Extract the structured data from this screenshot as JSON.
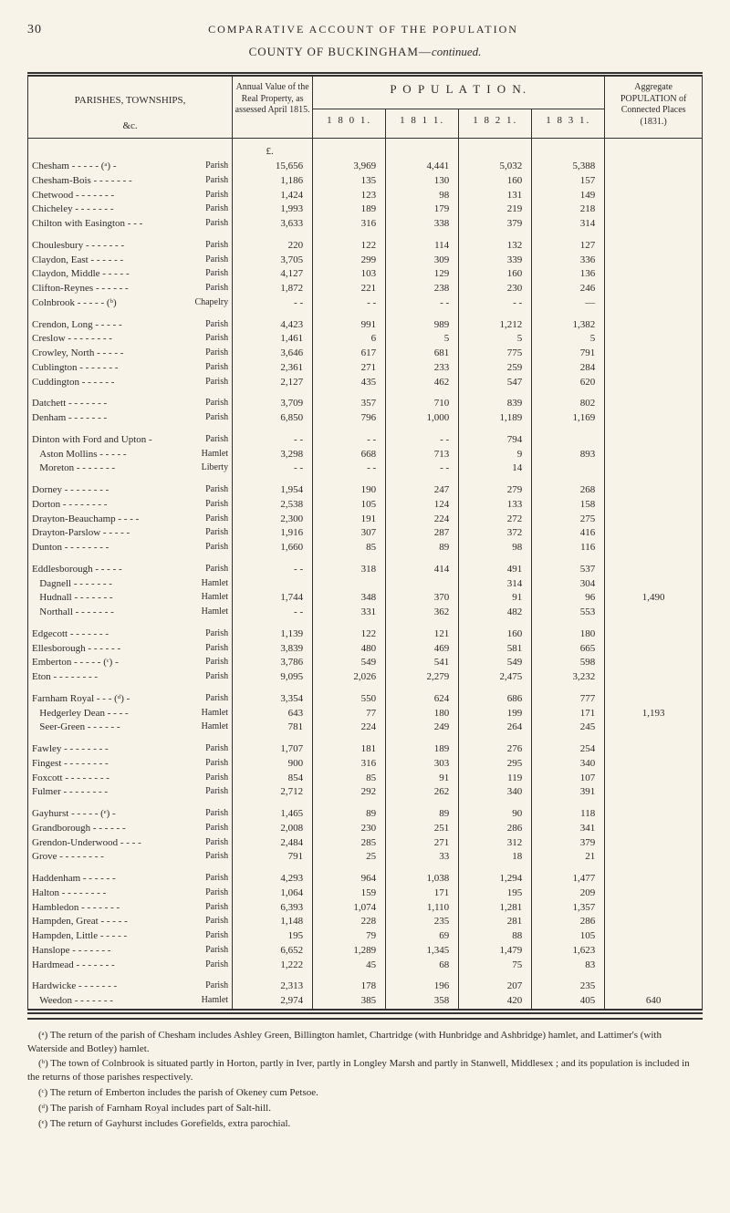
{
  "page_number": "30",
  "running_head": "COMPARATIVE ACCOUNT OF THE POPULATION",
  "county_line_prefix": "COUNTY OF BUCKINGHAM—",
  "county_line_suffix": "continued.",
  "columns": {
    "parishes": "PARISHES, TOWNSHIPS,",
    "etc": "&c.",
    "annual": "Annual Value of the Real Property, as assessed April 1815.",
    "population": "P O P U L A T I O N.",
    "y1801": "1 8 0 1.",
    "y1811": "1 8 1 1.",
    "y1821": "1 8 2 1.",
    "y1831": "1 8 3 1.",
    "aggregate": "Aggregate POPULATION of Connected Places (1831.)"
  },
  "currency_header": "£.",
  "rows": [
    {
      "name": "Chesham - - - - - (ᵃ) -",
      "kind": "Parish",
      "annual": "15,656",
      "y1": "3,969",
      "y2": "4,441",
      "y3": "5,032",
      "y4": "5,388",
      "agg": ""
    },
    {
      "name": "Chesham-Bois - - - - - - -",
      "kind": "Parish",
      "annual": "1,186",
      "y1": "135",
      "y2": "130",
      "y3": "160",
      "y4": "157",
      "agg": ""
    },
    {
      "name": "Chetwood - - - - - - -",
      "kind": "Parish",
      "annual": "1,424",
      "y1": "123",
      "y2": "98",
      "y3": "131",
      "y4": "149",
      "agg": ""
    },
    {
      "name": "Chicheley - - - - - - -",
      "kind": "Parish",
      "annual": "1,993",
      "y1": "189",
      "y2": "179",
      "y3": "219",
      "y4": "218",
      "agg": ""
    },
    {
      "name": "Chilton with Easington - - -",
      "kind": "Parish",
      "annual": "3,633",
      "y1": "316",
      "y2": "338",
      "y3": "379",
      "y4": "314",
      "agg": ""
    },
    {
      "gap": true
    },
    {
      "name": "Choulesbury - - - - - - -",
      "kind": "Parish",
      "annual": "220",
      "y1": "122",
      "y2": "114",
      "y3": "132",
      "y4": "127",
      "agg": ""
    },
    {
      "name": "Claydon, East - - - - - -",
      "kind": "Parish",
      "annual": "3,705",
      "y1": "299",
      "y2": "309",
      "y3": "339",
      "y4": "336",
      "agg": ""
    },
    {
      "name": "Claydon, Middle - - - - -",
      "kind": "Parish",
      "annual": "4,127",
      "y1": "103",
      "y2": "129",
      "y3": "160",
      "y4": "136",
      "agg": ""
    },
    {
      "name": "Clifton-Reynes - - - - - -",
      "kind": "Parish",
      "annual": "1,872",
      "y1": "221",
      "y2": "238",
      "y3": "230",
      "y4": "246",
      "agg": ""
    },
    {
      "name": "Colnbrook - - - - - (ᵇ)",
      "kind": "Chapelry",
      "annual": "-    -",
      "y1": "-    -",
      "y2": "-    -",
      "y3": "-    -",
      "y4": "—",
      "agg": ""
    },
    {
      "gap": true
    },
    {
      "name": "Crendon, Long - - - - -",
      "kind": "Parish",
      "annual": "4,423",
      "y1": "991",
      "y2": "989",
      "y3": "1,212",
      "y4": "1,382",
      "agg": ""
    },
    {
      "name": "Creslow - - - - - - - -",
      "kind": "Parish",
      "annual": "1,461",
      "y1": "6",
      "y2": "5",
      "y3": "5",
      "y4": "5",
      "agg": ""
    },
    {
      "name": "Crowley, North - - - - -",
      "kind": "Parish",
      "annual": "3,646",
      "y1": "617",
      "y2": "681",
      "y3": "775",
      "y4": "791",
      "agg": ""
    },
    {
      "name": "Cublington - - - - - - -",
      "kind": "Parish",
      "annual": "2,361",
      "y1": "271",
      "y2": "233",
      "y3": "259",
      "y4": "284",
      "agg": ""
    },
    {
      "name": "Cuddington - - - - - -",
      "kind": "Parish",
      "annual": "2,127",
      "y1": "435",
      "y2": "462",
      "y3": "547",
      "y4": "620",
      "agg": ""
    },
    {
      "gap": true
    },
    {
      "name": "Datchett - - - - - - -",
      "kind": "Parish",
      "annual": "3,709",
      "y1": "357",
      "y2": "710",
      "y3": "839",
      "y4": "802",
      "agg": ""
    },
    {
      "name": "Denham - - - - - - -",
      "kind": "Parish",
      "annual": "6,850",
      "y1": "796",
      "y2": "1,000",
      "y3": "1,189",
      "y4": "1,169",
      "agg": ""
    },
    {
      "gap": true
    },
    {
      "name": "Dinton with Ford and Upton -",
      "kind": "Parish",
      "annual": "-    -",
      "y1": "-    -",
      "y2": "-    -",
      "y3": "794",
      "y4": "",
      "agg": "",
      "brace_start": "dinton"
    },
    {
      "name": "Aston Mollins - - - - -",
      "kind": "Hamlet",
      "annual": "3,298",
      "y1": "668",
      "y2": "713",
      "y3": "9",
      "y4": "893",
      "agg": "",
      "indent": true
    },
    {
      "name": "Moreton - - - - - - -",
      "kind": "Liberty",
      "annual": "-    -",
      "y1": "-    -",
      "y2": "-    -",
      "y3": "14",
      "y4": "",
      "agg": "",
      "indent": true
    },
    {
      "gap": true
    },
    {
      "name": "Dorney - - - - - - - -",
      "kind": "Parish",
      "annual": "1,954",
      "y1": "190",
      "y2": "247",
      "y3": "279",
      "y4": "268",
      "agg": ""
    },
    {
      "name": "Dorton - - - - - - - -",
      "kind": "Parish",
      "annual": "2,538",
      "y1": "105",
      "y2": "124",
      "y3": "133",
      "y4": "158",
      "agg": ""
    },
    {
      "name": "Drayton-Beauchamp - - - -",
      "kind": "Parish",
      "annual": "2,300",
      "y1": "191",
      "y2": "224",
      "y3": "272",
      "y4": "275",
      "agg": ""
    },
    {
      "name": "Drayton-Parslow - - - - -",
      "kind": "Parish",
      "annual": "1,916",
      "y1": "307",
      "y2": "287",
      "y3": "372",
      "y4": "416",
      "agg": ""
    },
    {
      "name": "Dunton - - - - - - - -",
      "kind": "Parish",
      "annual": "1,660",
      "y1": "85",
      "y2": "89",
      "y3": "98",
      "y4": "116",
      "agg": ""
    },
    {
      "gap": true
    },
    {
      "name": "Eddlesborough - - - - -",
      "kind": "Parish",
      "annual": "-    -",
      "y1": "318",
      "y2": "414",
      "y3": "491",
      "y4": "537",
      "agg": ""
    },
    {
      "name": "Dagnell - - - - - - -",
      "kind": "Hamlet",
      "annual": "",
      "y1": "",
      "y2": "",
      "y3": "314",
      "y4": "304",
      "agg": "",
      "indent": true
    },
    {
      "name": "Hudnall - - - - - - -",
      "kind": "Hamlet",
      "annual": "1,744",
      "y1": "348",
      "y2": "370",
      "y3": "91",
      "y4": "96",
      "agg": "1,490",
      "indent": true
    },
    {
      "name": "Northall - - - - - - -",
      "kind": "Hamlet",
      "annual": "-    -",
      "y1": "331",
      "y2": "362",
      "y3": "482",
      "y4": "553",
      "agg": "",
      "indent": true
    },
    {
      "gap": true
    },
    {
      "name": "Edgecott - - - - - - -",
      "kind": "Parish",
      "annual": "1,139",
      "y1": "122",
      "y2": "121",
      "y3": "160",
      "y4": "180",
      "agg": ""
    },
    {
      "name": "Ellesborough - - - - - -",
      "kind": "Parish",
      "annual": "3,839",
      "y1": "480",
      "y2": "469",
      "y3": "581",
      "y4": "665",
      "agg": ""
    },
    {
      "name": "Emberton - - - - - (ᶜ) -",
      "kind": "Parish",
      "annual": "3,786",
      "y1": "549",
      "y2": "541",
      "y3": "549",
      "y4": "598",
      "agg": ""
    },
    {
      "name": "Eton - - - - - - - -",
      "kind": "Parish",
      "annual": "9,095",
      "y1": "2,026",
      "y2": "2,279",
      "y3": "2,475",
      "y4": "3,232",
      "agg": ""
    },
    {
      "gap": true
    },
    {
      "name": "Farnham Royal - - - (ᵈ) -",
      "kind": "Parish",
      "annual": "3,354",
      "y1": "550",
      "y2": "624",
      "y3": "686",
      "y4": "777",
      "agg": ""
    },
    {
      "name": "Hedgerley Dean - - - -",
      "kind": "Hamlet",
      "annual": "643",
      "y1": "77",
      "y2": "180",
      "y3": "199",
      "y4": "171",
      "agg": "1,193",
      "indent": true
    },
    {
      "name": "Seer-Green - - - - - -",
      "kind": "Hamlet",
      "annual": "781",
      "y1": "224",
      "y2": "249",
      "y3": "264",
      "y4": "245",
      "agg": "",
      "indent": true
    },
    {
      "gap": true
    },
    {
      "name": "Fawley - - - - - - - -",
      "kind": "Parish",
      "annual": "1,707",
      "y1": "181",
      "y2": "189",
      "y3": "276",
      "y4": "254",
      "agg": ""
    },
    {
      "name": "Fingest - - - - - - - -",
      "kind": "Parish",
      "annual": "900",
      "y1": "316",
      "y2": "303",
      "y3": "295",
      "y4": "340",
      "agg": ""
    },
    {
      "name": "Foxcott - - - - - - - -",
      "kind": "Parish",
      "annual": "854",
      "y1": "85",
      "y2": "91",
      "y3": "119",
      "y4": "107",
      "agg": ""
    },
    {
      "name": "Fulmer - - - - - - - -",
      "kind": "Parish",
      "annual": "2,712",
      "y1": "292",
      "y2": "262",
      "y3": "340",
      "y4": "391",
      "agg": ""
    },
    {
      "gap": true
    },
    {
      "name": "Gayhurst - - - - - (ᵉ) -",
      "kind": "Parish",
      "annual": "1,465",
      "y1": "89",
      "y2": "89",
      "y3": "90",
      "y4": "118",
      "agg": ""
    },
    {
      "name": "Grandborough - - - - - -",
      "kind": "Parish",
      "annual": "2,008",
      "y1": "230",
      "y2": "251",
      "y3": "286",
      "y4": "341",
      "agg": ""
    },
    {
      "name": "Grendon-Underwood - - - -",
      "kind": "Parish",
      "annual": "2,484",
      "y1": "285",
      "y2": "271",
      "y3": "312",
      "y4": "379",
      "agg": ""
    },
    {
      "name": "Grove - - - - - - - -",
      "kind": "Parish",
      "annual": "791",
      "y1": "25",
      "y2": "33",
      "y3": "18",
      "y4": "21",
      "agg": ""
    },
    {
      "gap": true
    },
    {
      "name": "Haddenham - - - - - -",
      "kind": "Parish",
      "annual": "4,293",
      "y1": "964",
      "y2": "1,038",
      "y3": "1,294",
      "y4": "1,477",
      "agg": ""
    },
    {
      "name": "Halton - - - - - - - -",
      "kind": "Parish",
      "annual": "1,064",
      "y1": "159",
      "y2": "171",
      "y3": "195",
      "y4": "209",
      "agg": ""
    },
    {
      "name": "Hambledon - - - - - - -",
      "kind": "Parish",
      "annual": "6,393",
      "y1": "1,074",
      "y2": "1,110",
      "y3": "1,281",
      "y4": "1,357",
      "agg": ""
    },
    {
      "name": "Hampden, Great - - - - -",
      "kind": "Parish",
      "annual": "1,148",
      "y1": "228",
      "y2": "235",
      "y3": "281",
      "y4": "286",
      "agg": ""
    },
    {
      "name": "Hampden, Little - - - - -",
      "kind": "Parish",
      "annual": "195",
      "y1": "79",
      "y2": "69",
      "y3": "88",
      "y4": "105",
      "agg": ""
    },
    {
      "name": "Hanslope - - - - - - -",
      "kind": "Parish",
      "annual": "6,652",
      "y1": "1,289",
      "y2": "1,345",
      "y3": "1,479",
      "y4": "1,623",
      "agg": ""
    },
    {
      "name": "Hardmead - - - - - - -",
      "kind": "Parish",
      "annual": "1,222",
      "y1": "45",
      "y2": "68",
      "y3": "75",
      "y4": "83",
      "agg": ""
    },
    {
      "gap": true
    },
    {
      "name": "Hardwicke - - - - - - -",
      "kind": "Parish",
      "annual": "2,313",
      "y1": "178",
      "y2": "196",
      "y3": "207",
      "y4": "235",
      "agg": ""
    },
    {
      "name": "Weedon - - - - - - -",
      "kind": "Hamlet",
      "annual": "2,974",
      "y1": "385",
      "y2": "358",
      "y3": "420",
      "y4": "405",
      "agg": "640",
      "indent": true
    }
  ],
  "footnotes": [
    "(ᵃ) The return of the parish of Chesham includes Ashley Green, Billington hamlet, Chartridge (with Hunbridge and Ashbridge) hamlet, and Lattimer's (with Waterside and Botley) hamlet.",
    "(ᵇ) The town of Colnbrook is situated partly in Horton, partly in Iver, partly in Longley Marsh and partly in Stanwell, Middlesex ; and its population is included in the returns of those parishes respectively.",
    "(ᶜ) The return of Emberton includes the parish of Okeney cum Petsoe.",
    "(ᵈ) The parish of Farnham Royal includes part of Salt-hill.",
    "(ᵉ) The return of Gayhurst includes Gorefields, extra parochial."
  ]
}
